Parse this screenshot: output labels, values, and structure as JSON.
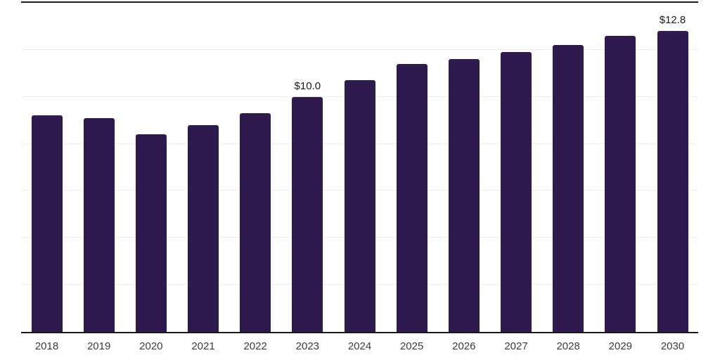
{
  "chart_data": {
    "type": "bar",
    "title": "",
    "xlabel": "",
    "ylabel": "",
    "categories": [
      "2018",
      "2019",
      "2020",
      "2021",
      "2022",
      "2023",
      "2024",
      "2025",
      "2026",
      "2027",
      "2028",
      "2029",
      "2030"
    ],
    "values": [
      9.2,
      9.1,
      8.4,
      8.8,
      9.3,
      10.0,
      10.7,
      11.4,
      11.6,
      11.9,
      12.2,
      12.6,
      12.8
    ],
    "data_labels": [
      {
        "category": "2023",
        "text": "$10.0"
      },
      {
        "category": "2030",
        "text": "$12.8"
      }
    ],
    "ylim": [
      0,
      14
    ],
    "gridline_values": [
      2,
      4,
      6,
      8,
      10,
      12
    ],
    "grid": true,
    "legend_position": "none",
    "colors": {
      "bar": "#2f1a4d",
      "gridline": "#ededf0",
      "axis_line": "#1b1b22",
      "tick_label": "#3a3a3a",
      "data_label": "#1a1a1a",
      "background": "#ffffff"
    }
  }
}
